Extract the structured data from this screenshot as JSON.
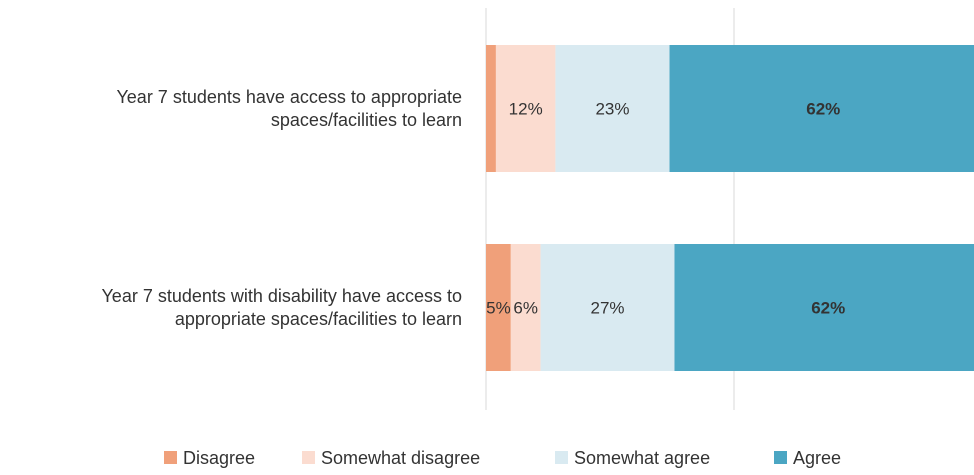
{
  "chart_data": {
    "type": "bar",
    "orientation": "horizontal",
    "stacked": true,
    "categories": [
      [
        "Year 7 students have access to appropriate",
        "spaces/facilities to learn"
      ],
      [
        "Year 7 students with disability have access to",
        "appropriate spaces/facilities to learn"
      ]
    ],
    "series": [
      {
        "name": "Disagree",
        "color": "#f0a07a",
        "values": [
          2,
          5
        ],
        "labels": [
          "",
          "5%"
        ],
        "bold": false
      },
      {
        "name": "Somewhat disagree",
        "color": "#fbdcd0",
        "values": [
          12,
          6
        ],
        "labels": [
          "12%",
          "6%"
        ],
        "bold": false
      },
      {
        "name": "Somewhat agree",
        "color": "#d9eaf1",
        "values": [
          23,
          27
        ],
        "labels": [
          "23%",
          "27%"
        ],
        "bold": false
      },
      {
        "name": "Agree",
        "color": "#4ba6c3",
        "values": [
          62,
          62
        ],
        "labels": [
          "62%",
          "62%"
        ],
        "bold": true
      }
    ],
    "xlim": [
      0,
      100
    ],
    "grid": true,
    "legend_position": "bottom"
  }
}
